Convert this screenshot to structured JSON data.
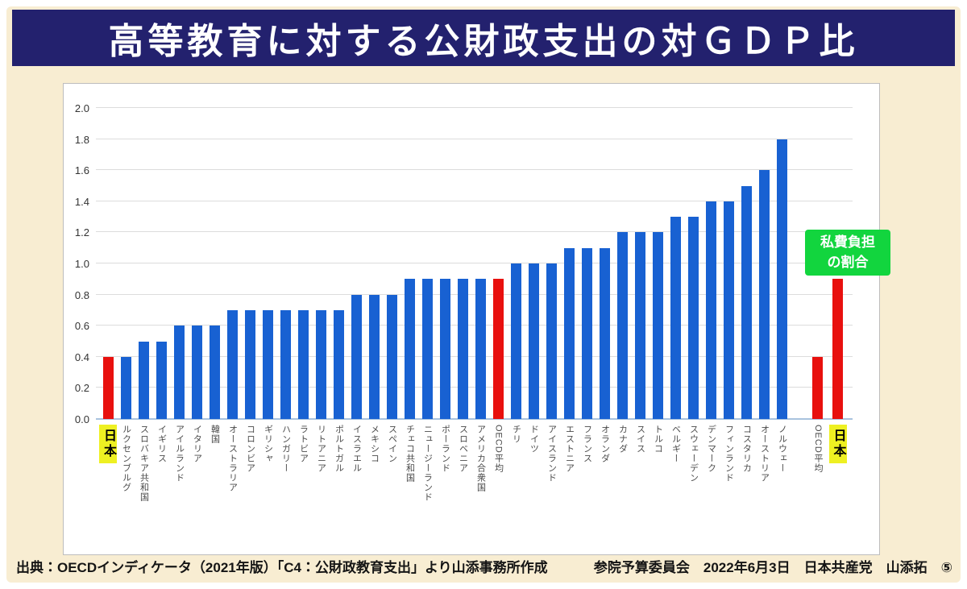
{
  "page_title": "高等教育に対する公財政支出の対ＧＤＰ比",
  "footer": {
    "source": "出典：OECDインディケータ（2021年版）「C4：公財政教育支出」より山添事務所作成",
    "credit": "参院予算委員会　2022年6月3日　日本共産党　山添拓　⑤"
  },
  "chart_data": {
    "type": "bar",
    "title": "高等教育に対する公財政支出の対ＧＤＰ比",
    "xlabel": "",
    "ylabel": "",
    "ylim": [
      0,
      2.0
    ],
    "ytick_step": 0.2,
    "yticks": [
      "0.0",
      "0.2",
      "0.4",
      "0.6",
      "0.8",
      "1.0",
      "1.2",
      "1.4",
      "1.6",
      "1.8",
      "2.0"
    ],
    "grid": true,
    "annotation": "私費負担\nの割合",
    "colors": {
      "public_bar": "#1861d2",
      "accent_bar": "#e8100e",
      "highlight_label_bg": "#eef022",
      "annotation_bg": "#12d53e",
      "title_bg": "#23216e",
      "page_bg": "#f8edd2"
    },
    "series": [
      {
        "name": "公財政支出",
        "bars": [
          {
            "label": "日本",
            "value": 0.4,
            "accent": true,
            "highlight": true
          },
          {
            "label": "ルクセンブルグ",
            "value": 0.4
          },
          {
            "label": "スロバキア共和国",
            "value": 0.5
          },
          {
            "label": "イギリス",
            "value": 0.5
          },
          {
            "label": "アイルランド",
            "value": 0.6
          },
          {
            "label": "イタリア",
            "value": 0.6
          },
          {
            "label": "韓国",
            "value": 0.6
          },
          {
            "label": "オーストラリア",
            "value": 0.7
          },
          {
            "label": "コロンビア",
            "value": 0.7
          },
          {
            "label": "ギリシャ",
            "value": 0.7
          },
          {
            "label": "ハンガリー",
            "value": 0.7
          },
          {
            "label": "ラトビア",
            "value": 0.7
          },
          {
            "label": "リトアニア",
            "value": 0.7
          },
          {
            "label": "ポルトガル",
            "value": 0.7
          },
          {
            "label": "イスラエル",
            "value": 0.8
          },
          {
            "label": "メキシコ",
            "value": 0.8
          },
          {
            "label": "スペイン",
            "value": 0.8
          },
          {
            "label": "チェコ共和国",
            "value": 0.9
          },
          {
            "label": "ニュージーランド",
            "value": 0.9
          },
          {
            "label": "ポーランド",
            "value": 0.9
          },
          {
            "label": "スロベニア",
            "value": 0.9
          },
          {
            "label": "アメリカ合衆国",
            "value": 0.9
          },
          {
            "label": "OECD平均",
            "value": 0.9,
            "accent": true
          },
          {
            "label": "チリ",
            "value": 1.0
          },
          {
            "label": "ドイツ",
            "value": 1.0
          },
          {
            "label": "アイスランド",
            "value": 1.0
          },
          {
            "label": "エストニア",
            "value": 1.1
          },
          {
            "label": "フランス",
            "value": 1.1
          },
          {
            "label": "オランダ",
            "value": 1.1
          },
          {
            "label": "カナダ",
            "value": 1.2
          },
          {
            "label": "スイス",
            "value": 1.2
          },
          {
            "label": "トルコ",
            "value": 1.2
          },
          {
            "label": "ベルギー",
            "value": 1.3
          },
          {
            "label": "スウェーデン",
            "value": 1.3
          },
          {
            "label": "デンマーク",
            "value": 1.4
          },
          {
            "label": "フィンランド",
            "value": 1.4
          },
          {
            "label": "コスタリカ",
            "value": 1.5
          },
          {
            "label": "オーストリア",
            "value": 1.6
          },
          {
            "label": "ノルウェー",
            "value": 1.8
          }
        ]
      },
      {
        "name": "私費負担の割合",
        "bars": [
          {
            "label": "OECD平均",
            "value": 0.4,
            "accent": true
          },
          {
            "label": "日本",
            "value": 0.9,
            "accent": true,
            "highlight": true
          }
        ]
      }
    ]
  }
}
